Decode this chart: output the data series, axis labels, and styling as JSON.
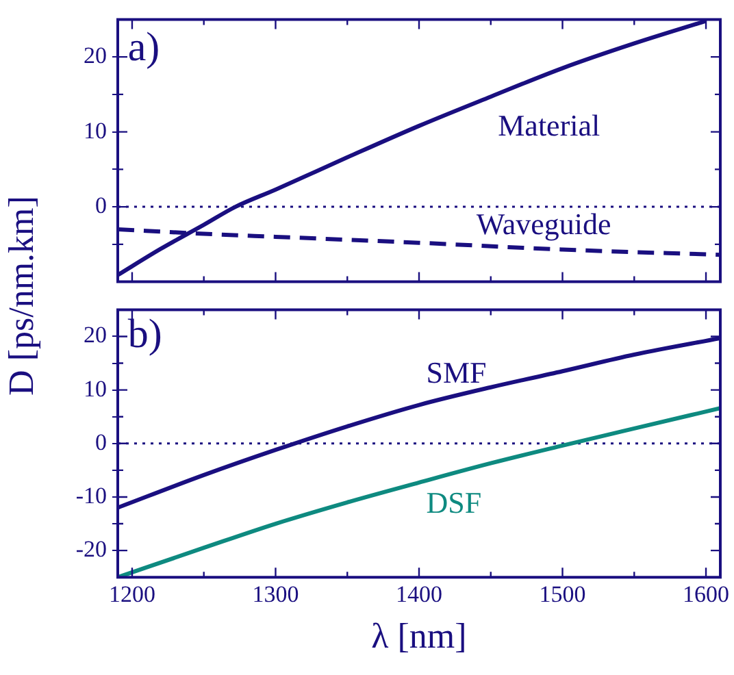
{
  "chart_data": [
    {
      "type": "line",
      "ylabel": "D [ps/nm.km]",
      "annotations": [
        "a)"
      ],
      "tick_labels": "y",
      "grid": false,
      "legend": false,
      "marker": "none",
      "xlim": [
        1190,
        1610
      ],
      "xticks": [
        1200,
        {
          "value": 1250,
          "label": null
        },
        1300,
        {
          "value": 1350,
          "label": null
        },
        1400,
        {
          "value": 1450,
          "label": null
        },
        1500,
        {
          "value": 1550,
          "label": null
        },
        1600
      ],
      "ylim": [
        -10,
        25
      ],
      "yticks": [
        {
          "value": -5,
          "label": null
        },
        0,
        {
          "value": 5,
          "label": null
        },
        10,
        {
          "value": 15,
          "label": null
        },
        20
      ],
      "ref_lines": [
        {
          "axis": "y",
          "value": 0,
          "color": "#1a0f80",
          "line_style": "dotted"
        }
      ],
      "series": [
        {
          "name": "Material",
          "color": "#1a0f80",
          "line_style": "solid",
          "x": [
            1190,
            1220,
            1250,
            1272,
            1300,
            1350,
            1400,
            1450,
            1500,
            1550,
            1600
          ],
          "values": [
            -9.1,
            -5.6,
            -2.4,
            0,
            2.3,
            6.6,
            10.8,
            14.7,
            18.5,
            21.8,
            24.8
          ]
        },
        {
          "name": "Waveguide",
          "color": "#1a0f80",
          "line_style": "dashed",
          "x": [
            1190,
            1250,
            1300,
            1400,
            1500,
            1610
          ],
          "values": [
            -3.0,
            -3.6,
            -4.0,
            -4.8,
            -5.7,
            -6.4
          ]
        }
      ]
    },
    {
      "type": "line",
      "xlabel": "λ [nm]",
      "annotations": [
        "b)"
      ],
      "grid": false,
      "legend": false,
      "marker": "none",
      "xlim": [
        1190,
        1610
      ],
      "xticks": [
        1200,
        {
          "value": 1250,
          "label": null
        },
        1300,
        {
          "value": 1350,
          "label": null
        },
        1400,
        {
          "value": 1450,
          "label": null
        },
        1500,
        {
          "value": 1550,
          "label": null
        },
        1600
      ],
      "ylim": [
        -25,
        25
      ],
      "yticks": [
        -20,
        {
          "value": -15,
          "label": null
        },
        -10,
        {
          "value": -5,
          "label": null
        },
        0,
        {
          "value": 5,
          "label": null
        },
        10,
        {
          "value": 15,
          "label": null
        },
        20
      ],
      "ref_lines": [
        {
          "axis": "y",
          "value": 0,
          "color": "#1a0f80",
          "line_style": "dotted"
        }
      ],
      "series": [
        {
          "name": "SMF",
          "color": "#1a0f80",
          "line_style": "solid",
          "x": [
            1190,
            1250,
            1300,
            1350,
            1400,
            1450,
            1500,
            1550,
            1610
          ],
          "values": [
            -12,
            -5.9,
            -1.2,
            3.2,
            7.2,
            10.5,
            13.5,
            16.6,
            19.7
          ]
        },
        {
          "name": "DSF",
          "color": "#0e8a80",
          "line_style": "solid",
          "x": [
            1190,
            1250,
            1300,
            1350,
            1400,
            1450,
            1500,
            1550,
            1610
          ],
          "values": [
            -25,
            -19.5,
            -15,
            -11,
            -7.3,
            -3.7,
            -0.4,
            2.8,
            6.6
          ]
        }
      ]
    }
  ]
}
